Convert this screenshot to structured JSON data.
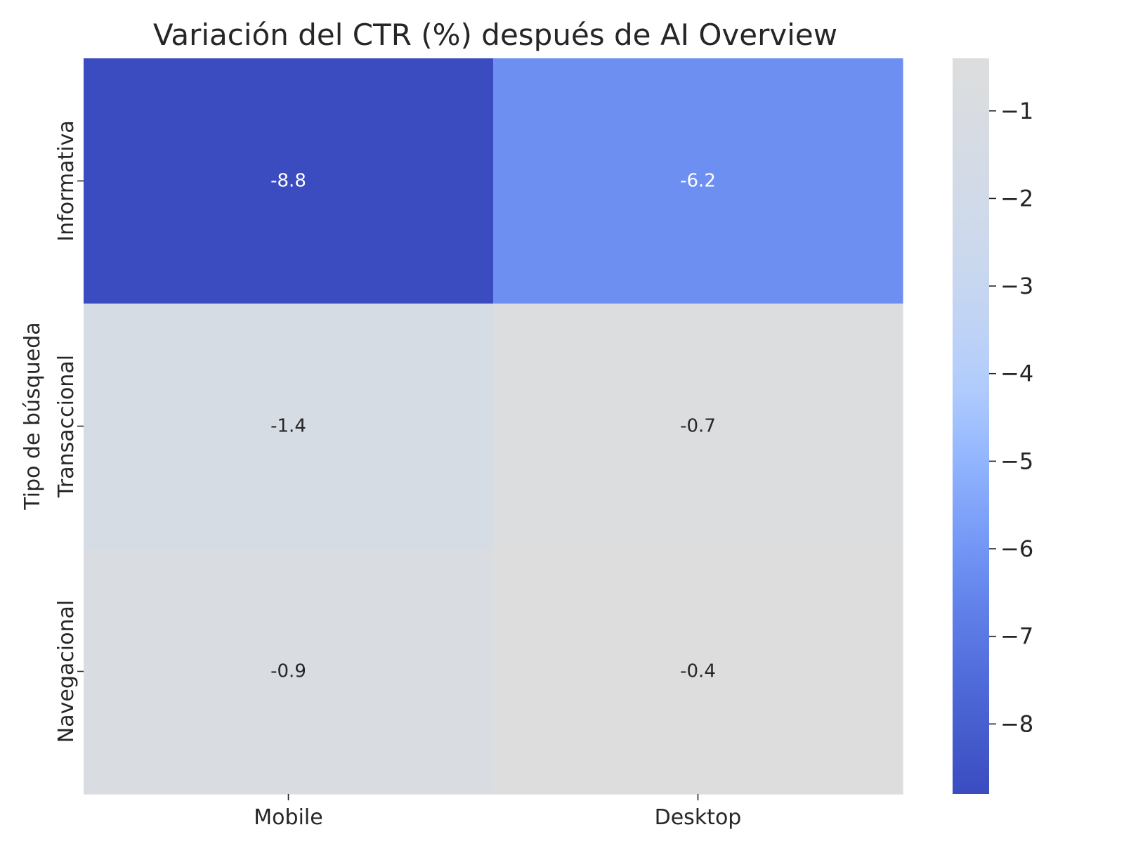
{
  "chart_data": {
    "type": "heatmap",
    "title": "Variación del CTR (%) después de AI Overview",
    "xlabel": "",
    "ylabel": "Tipo de búsqueda",
    "x_categories": [
      "Mobile",
      "Desktop"
    ],
    "y_categories": [
      "Informativa",
      "Transaccional",
      "Navegacional"
    ],
    "values": [
      [
        -8.8,
        -6.2
      ],
      [
        -1.4,
        -0.7
      ],
      [
        -0.9,
        -0.4
      ]
    ],
    "colorscale": {
      "name": "coolwarm",
      "vmin": -8.8,
      "vmax": -0.4,
      "ticks": [
        -1,
        -2,
        -3,
        -4,
        -5,
        -6,
        -7,
        -8
      ],
      "tick_labels": [
        "−1",
        "−2",
        "−3",
        "−4",
        "−5",
        "−6",
        "−7",
        "−8"
      ]
    },
    "annotations": true
  }
}
